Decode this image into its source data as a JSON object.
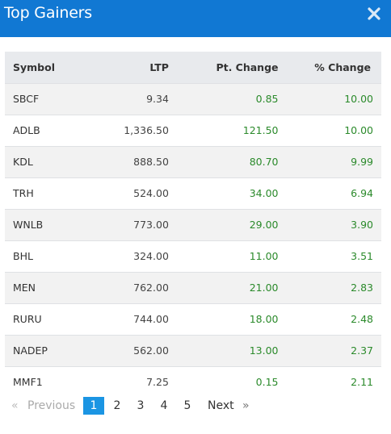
{
  "header": {
    "title": "Top Gainers"
  },
  "table": {
    "columns": [
      "Symbol",
      "LTP",
      "Pt. Change",
      "% Change"
    ],
    "rows": [
      {
        "symbol": "SBCF",
        "ltp": "9.34",
        "pt": "0.85",
        "pct": "10.00"
      },
      {
        "symbol": "ADLB",
        "ltp": "1,336.50",
        "pt": "121.50",
        "pct": "10.00"
      },
      {
        "symbol": "KDL",
        "ltp": "888.50",
        "pt": "80.70",
        "pct": "9.99"
      },
      {
        "symbol": "TRH",
        "ltp": "524.00",
        "pt": "34.00",
        "pct": "6.94"
      },
      {
        "symbol": "WNLB",
        "ltp": "773.00",
        "pt": "29.00",
        "pct": "3.90"
      },
      {
        "symbol": "BHL",
        "ltp": "324.00",
        "pt": "11.00",
        "pct": "3.51"
      },
      {
        "symbol": "MEN",
        "ltp": "762.00",
        "pt": "21.00",
        "pct": "2.83"
      },
      {
        "symbol": "RURU",
        "ltp": "744.00",
        "pt": "18.00",
        "pct": "2.48"
      },
      {
        "symbol": "NADEP",
        "ltp": "562.00",
        "pt": "13.00",
        "pct": "2.37"
      },
      {
        "symbol": "MMF1",
        "ltp": "7.25",
        "pt": "0.15",
        "pct": "2.11"
      }
    ]
  },
  "pagination": {
    "prev_arrow": "«",
    "prev_label": "Previous",
    "pages": [
      "1",
      "2",
      "3",
      "4",
      "5"
    ],
    "active_page": "1",
    "next_label": "Next",
    "next_arrow": "»"
  },
  "colors": {
    "header_bg": "#1178d3",
    "positive": "#2b8a2b",
    "active_page": "#1b95e3"
  },
  "icons": {
    "close": "close-icon"
  }
}
